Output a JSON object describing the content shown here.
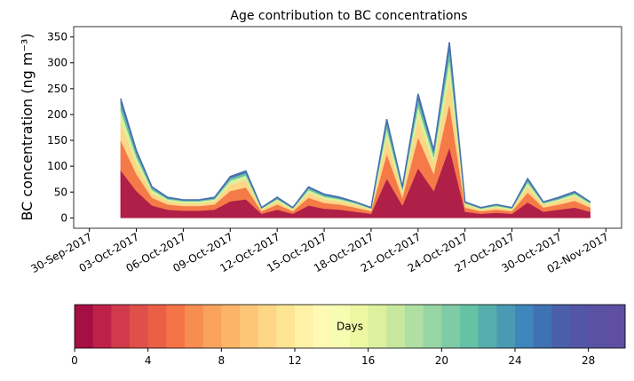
{
  "chart_data": {
    "type": "stacked_area",
    "title": "Age contribution to BC concentrations",
    "y_label": "BC concentration (ng m⁻³)",
    "x": [
      "2017-10-02",
      "2017-10-03",
      "2017-10-04",
      "2017-10-05",
      "2017-10-06",
      "2017-10-07",
      "2017-10-08",
      "2017-10-09",
      "2017-10-10",
      "2017-10-11",
      "2017-10-12",
      "2017-10-13",
      "2017-10-14",
      "2017-10-15",
      "2017-10-16",
      "2017-10-17",
      "2017-10-18",
      "2017-10-19",
      "2017-10-20",
      "2017-10-21",
      "2017-10-22",
      "2017-10-23",
      "2017-10-24",
      "2017-10-25",
      "2017-10-26",
      "2017-10-27",
      "2017-10-28",
      "2017-10-29",
      "2017-10-30",
      "2017-10-31",
      "2017-11-01"
    ],
    "series": [
      {
        "color": "#b01f47",
        "values": [
          92,
          52,
          24,
          16,
          14,
          14,
          16,
          32,
          36,
          8,
          16,
          8,
          24,
          18,
          16,
          12,
          8,
          76,
          24,
          96,
          52,
          136,
          12,
          8,
          10,
          8,
          30,
          12,
          16,
          20,
          12
        ]
      },
      {
        "color": "#f47a48",
        "values": [
          58,
          33,
          15,
          10,
          9,
          9,
          10,
          20,
          23,
          5,
          10,
          5,
          15,
          11,
          10,
          8,
          5,
          48,
          15,
          60,
          33,
          85,
          8,
          5,
          6,
          5,
          19,
          8,
          10,
          13,
          8
        ]
      },
      {
        "color": "#fdd686",
        "values": [
          35,
          20,
          9,
          6,
          5,
          5,
          6,
          12,
          14,
          3,
          6,
          3,
          9,
          7,
          6,
          5,
          3,
          29,
          9,
          36,
          20,
          51,
          5,
          3,
          4,
          3,
          11,
          5,
          6,
          8,
          5
        ]
      },
      {
        "color": "#dcf09d",
        "values": [
          23,
          13,
          6,
          4,
          4,
          4,
          4,
          8,
          9,
          2,
          4,
          2,
          6,
          5,
          4,
          3,
          2,
          19,
          6,
          24,
          13,
          34,
          3,
          2,
          3,
          2,
          8,
          3,
          4,
          5,
          3
        ]
      },
      {
        "color": "#66c2a5",
        "values": [
          14,
          8,
          4,
          2,
          2,
          2,
          2,
          5,
          5,
          1,
          2,
          1,
          4,
          3,
          2,
          2,
          1,
          11,
          4,
          14,
          8,
          20,
          2,
          1,
          2,
          1,
          5,
          2,
          2,
          3,
          2
        ]
      },
      {
        "color": "#4a6fb0",
        "values": [
          9,
          5,
          2,
          2,
          1,
          1,
          2,
          3,
          4,
          1,
          2,
          1,
          2,
          2,
          2,
          1,
          1,
          8,
          2,
          10,
          5,
          14,
          1,
          1,
          1,
          1,
          3,
          1,
          2,
          2,
          1
        ]
      }
    ],
    "xlim": [
      "2017-09-29",
      "2017-11-03"
    ],
    "xticks": [
      {
        "value": "2017-09-30",
        "label": "30-Sep-2017"
      },
      {
        "value": "2017-10-03",
        "label": "03-Oct-2017"
      },
      {
        "value": "2017-10-06",
        "label": "06-Oct-2017"
      },
      {
        "value": "2017-10-09",
        "label": "09-Oct-2017"
      },
      {
        "value": "2017-10-12",
        "label": "12-Oct-2017"
      },
      {
        "value": "2017-10-15",
        "label": "15-Oct-2017"
      },
      {
        "value": "2017-10-18",
        "label": "18-Oct-2017"
      },
      {
        "value": "2017-10-21",
        "label": "21-Oct-2017"
      },
      {
        "value": "2017-10-24",
        "label": "24-Oct-2017"
      },
      {
        "value": "2017-10-27",
        "label": "27-Oct-2017"
      },
      {
        "value": "2017-10-30",
        "label": "30-Oct-2017"
      },
      {
        "value": "2017-11-02",
        "label": "02-Nov-2017"
      }
    ],
    "ylim": [
      -20,
      370
    ],
    "yticks": [
      0,
      50,
      100,
      150,
      200,
      250,
      300,
      350
    ],
    "colorbar": {
      "label": "Days",
      "lim": [
        0,
        30
      ],
      "ticks": [
        0,
        4,
        8,
        12,
        16,
        20,
        24,
        28
      ],
      "colors": [
        "#a50f43",
        "#be2148",
        "#d13a4b",
        "#e0504a",
        "#ea6047",
        "#f57446",
        "#f88d52",
        "#faa25c",
        "#fcb468",
        "#fdc677",
        "#fdd686",
        "#fee593",
        "#fff1a5",
        "#fefab6",
        "#f7fcb3",
        "#ecf7a2",
        "#dcf09d",
        "#c7e89e",
        "#b0dfa3",
        "#96d5a4",
        "#7ecba5",
        "#66c2a5",
        "#55aeab",
        "#4a9ab3",
        "#3e86bc",
        "#3f72b3",
        "#4a5fa8",
        "#5256a5",
        "#5a51a3",
        "#5e4fa2"
      ]
    }
  }
}
